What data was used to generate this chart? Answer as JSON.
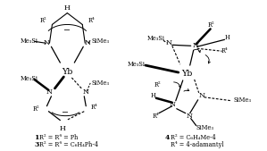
{
  "label1_num": "1",
  "label1_text": "R² = R⁴ = Ph",
  "label3_num": "3",
  "label3_text": "R² = R⁴ = C₆H₄Ph-4",
  "label4_num": "4",
  "label4_text_a": "R² = C₆H₄Me-4",
  "label4_text_b": "R⁴ = 4-adamantyl"
}
